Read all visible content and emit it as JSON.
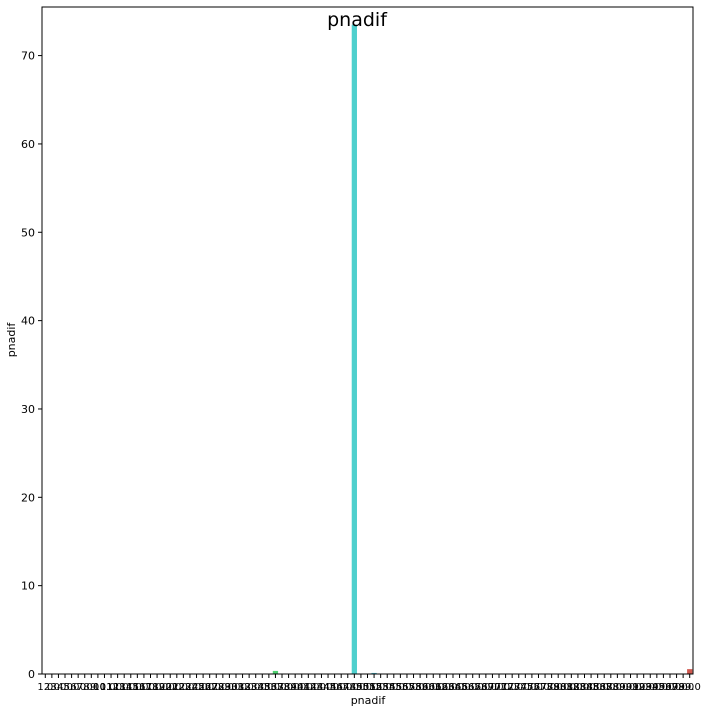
{
  "chart_data": {
    "type": "bar",
    "title": "pnadif",
    "xlabel": "pnadif",
    "ylabel": "pnadif",
    "ylim": [
      0,
      75.5
    ],
    "yticks": [
      0,
      10,
      20,
      30,
      40,
      50,
      60,
      70
    ],
    "grid": false,
    "legend": "none",
    "categories": [
      "1.0",
      "2.0",
      "3.0",
      "4.0",
      "5.0",
      "6.0",
      "7.0",
      "8.0",
      "9.0",
      "10.0",
      "11.0",
      "12.0",
      "13.0",
      "14.0",
      "15.0",
      "16.0",
      "17.0",
      "18.0",
      "19.0",
      "20.0",
      "21.0",
      "22.0",
      "23.0",
      "24.0",
      "25.0",
      "26.0",
      "27.0",
      "28.0",
      "29.0",
      "30.0",
      "31.0",
      "32.0",
      "33.0",
      "34.0",
      "35.0",
      "36.0",
      "37.0",
      "38.0",
      "39.0",
      "40.0",
      "41.0",
      "42.0",
      "43.0",
      "44.0",
      "45.0",
      "46.0",
      "47.0",
      "48.0",
      "49.0",
      "50.0",
      "51.0",
      "52.0",
      "53.0",
      "54.0",
      "55.0",
      "56.0",
      "57.0",
      "58.0",
      "59.0",
      "60.0",
      "61.0",
      "62.0",
      "63.0",
      "64.0",
      "65.0",
      "66.0",
      "67.0",
      "68.0",
      "69.0",
      "70.0",
      "71.0",
      "72.0",
      "73.0",
      "74.0",
      "75.0",
      "76.0",
      "77.0",
      "78.0",
      "79.0",
      "80.0",
      "81.0",
      "82.0",
      "83.0",
      "84.0",
      "85.0",
      "86.0",
      "87.0",
      "88.0",
      "89.0",
      "90.0",
      "91.0",
      "92.0",
      "93.0",
      "94.0",
      "95.0",
      "96.0",
      "97.0",
      "98.0",
      "99.0"
    ],
    "values": [
      0.02,
      0.02,
      0.01,
      0.01,
      0.01,
      0.01,
      0.01,
      0.01,
      0.01,
      0.01,
      0.01,
      0.01,
      0.01,
      0.01,
      0.01,
      0.01,
      0.01,
      0.01,
      0.01,
      0.01,
      0.01,
      0.01,
      0.01,
      0.01,
      0.01,
      0.01,
      0.01,
      0.01,
      0.01,
      0.01,
      0.01,
      0.01,
      0.02,
      0.01,
      0.02,
      0.35,
      0.02,
      0.02,
      0.01,
      0.01,
      0.01,
      0.01,
      0.01,
      0.02,
      0.02,
      0.01,
      0.01,
      73.5,
      0.02,
      0.02,
      0.12,
      0.02,
      0.01,
      0.01,
      0.01,
      0.01,
      0.01,
      0.01,
      0.01,
      0.01,
      0.01,
      0.01,
      0.01,
      0.01,
      0.01,
      0.01,
      0.01,
      0.01,
      0.01,
      0.01,
      0.01,
      0.01,
      0.01,
      0.01,
      0.01,
      0.01,
      0.01,
      0.01,
      0.01,
      0.01,
      0.01,
      0.01,
      0.05,
      0.01,
      0.01,
      0.01,
      0.01,
      0.01,
      0.01,
      0.01,
      0.01,
      0.01,
      0.05,
      0.01,
      0.01,
      0.01,
      0.01,
      0.01,
      0.55
    ]
  }
}
